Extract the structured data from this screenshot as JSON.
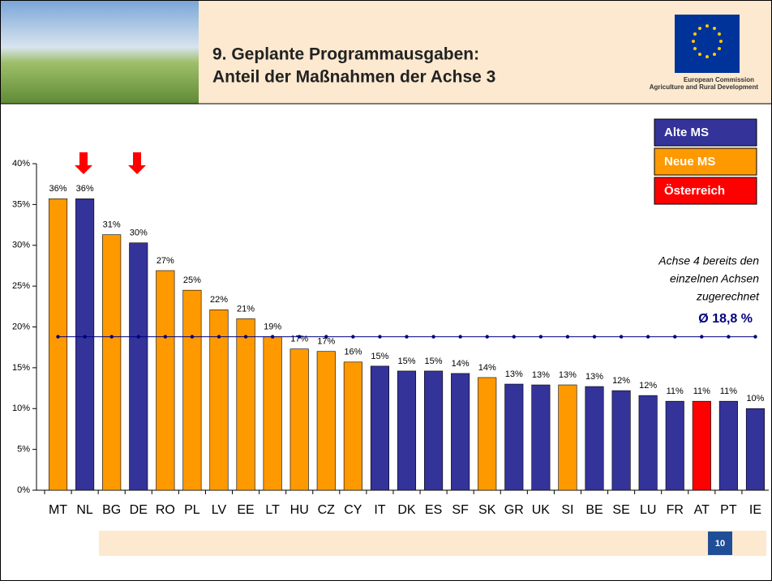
{
  "header": {
    "title": [
      "9. Geplante Programmausgaben:",
      "Anteil der Maßnahmen der Achse 3"
    ],
    "logo": [
      "European Commission",
      "Agriculture and Rural Development"
    ]
  },
  "chart_data": {
    "type": "bar",
    "categories": [
      "MT",
      "NL",
      "BG",
      "DE",
      "RO",
      "PL",
      "LV",
      "EE",
      "LT",
      "HU",
      "CZ",
      "CY",
      "IT",
      "DK",
      "ES",
      "SF",
      "SK",
      "GR",
      "UK",
      "SI",
      "BE",
      "SE",
      "LU",
      "FR",
      "AT",
      "PT",
      "IE"
    ],
    "values": [
      35.7,
      35.7,
      31.3,
      30.3,
      26.9,
      24.5,
      22.1,
      21.0,
      18.8,
      17.3,
      17.0,
      15.7,
      15.2,
      14.6,
      14.6,
      14.3,
      13.8,
      13.0,
      12.9,
      12.9,
      12.7,
      12.2,
      11.6,
      10.9,
      10.9,
      10.9,
      10.0
    ],
    "value_labels": [
      "36%",
      "36%",
      "31%",
      "30%",
      "27%",
      "25%",
      "22%",
      "21%",
      "19%",
      "17%",
      "17%",
      "16%",
      "15%",
      "15%",
      "15%",
      "14%",
      "14%",
      "13%",
      "13%",
      "13%",
      "13%",
      "12%",
      "12%",
      "11%",
      "11%",
      "11%",
      "10%"
    ],
    "colors": [
      "#FF9900",
      "#333399",
      "#FF9900",
      "#333399",
      "#FF9900",
      "#FF9900",
      "#FF9900",
      "#FF9900",
      "#FF9900",
      "#FF9900",
      "#FF9900",
      "#FF9900",
      "#333399",
      "#333399",
      "#333399",
      "#333399",
      "#FF9900",
      "#333399",
      "#333399",
      "#FF9900",
      "#333399",
      "#333399",
      "#333399",
      "#333399",
      "#FF0000",
      "#333399",
      "#333399"
    ],
    "legend": [
      {
        "label": "Alte MS",
        "color": "#333399"
      },
      {
        "label": "Neue MS",
        "color": "#FF9900"
      },
      {
        "label": "Österreich",
        "color": "#FF0000"
      }
    ],
    "reference_line": {
      "value": 18.8,
      "label": "Ø 18,8 %",
      "color": "#000080"
    },
    "annotation": [
      "Achse 4 bereits den",
      "einzelnen Achsen",
      "zugerechnet"
    ],
    "ylim": [
      0,
      40
    ],
    "yticks": [
      {
        "value": 0,
        "label": "0%"
      },
      {
        "value": 5,
        "label": "5%"
      },
      {
        "value": 10,
        "label": "10%"
      },
      {
        "value": 15,
        "label": "15%"
      },
      {
        "value": 20,
        "label": "20%"
      },
      {
        "value": 25,
        "label": "25%"
      },
      {
        "value": 30,
        "label": "30%"
      },
      {
        "value": 35,
        "label": "35%"
      },
      {
        "value": 40,
        "label": "40%"
      }
    ],
    "grid": false
  },
  "footer": {
    "page": "10"
  }
}
